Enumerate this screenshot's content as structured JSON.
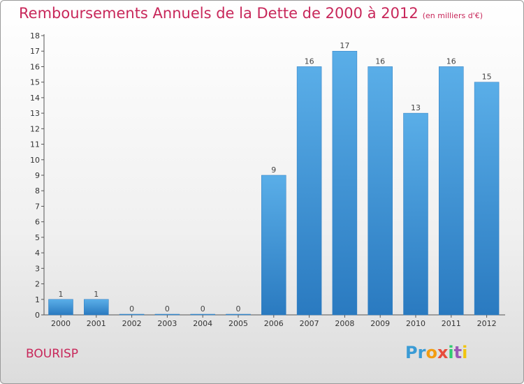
{
  "header": {
    "title": "Remboursements Annuels de la Dette de 2000 à 2012",
    "unit": "(en milliers d'€)"
  },
  "footer": {
    "city": "BOURISP",
    "logo": [
      {
        "ch": "P",
        "color": "#3a9bd5"
      },
      {
        "ch": "r",
        "color": "#3a9bd5"
      },
      {
        "ch": "o",
        "color": "#f39c12"
      },
      {
        "ch": "x",
        "color": "#e74c3c"
      },
      {
        "ch": "i",
        "color": "#2ecc71"
      },
      {
        "ch": "t",
        "color": "#9b59b6"
      },
      {
        "ch": "i",
        "color": "#f1c40f"
      }
    ]
  },
  "colors": {
    "bar_light": "#5aaee8",
    "bar_dark": "#2a7ac0",
    "title": "#c8275a"
  },
  "chart_data": {
    "type": "bar",
    "title": "Remboursements Annuels de la Dette de 2000 à 2012",
    "xlabel": "",
    "ylabel": "",
    "categories": [
      "2000",
      "2001",
      "2002",
      "2003",
      "2004",
      "2005",
      "2006",
      "2007",
      "2008",
      "2009",
      "2010",
      "2011",
      "2012"
    ],
    "values": [
      1,
      1,
      0,
      0,
      0,
      0,
      9,
      16,
      17,
      16,
      13,
      16,
      15
    ],
    "ylim": [
      0,
      18
    ],
    "yticks": [
      0,
      1,
      2,
      3,
      4,
      5,
      6,
      7,
      8,
      9,
      10,
      11,
      12,
      13,
      14,
      15,
      16,
      17,
      18
    ],
    "grid": false,
    "legend": "none"
  }
}
